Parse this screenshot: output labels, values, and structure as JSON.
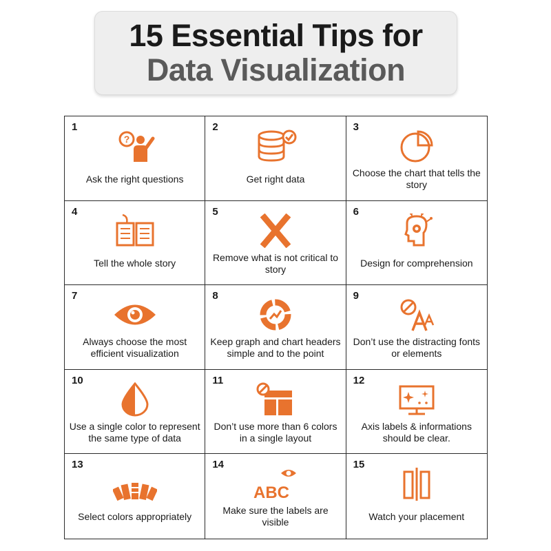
{
  "title": {
    "line1": "15 Essential Tips for",
    "line2": "Data Visualization"
  },
  "accent_color": "#e8732e",
  "tips": [
    {
      "number": "1",
      "label": "Ask the right questions",
      "icon": "question-person-icon"
    },
    {
      "number": "2",
      "label": "Get right data",
      "icon": "database-check-icon"
    },
    {
      "number": "3",
      "label": "Choose the chart that tells the story",
      "icon": "pie-chart-icon"
    },
    {
      "number": "4",
      "label": "Tell the whole story",
      "icon": "book-quill-icon"
    },
    {
      "number": "5",
      "label": "Remove what is not critical to story",
      "icon": "cross-icon"
    },
    {
      "number": "6",
      "label": "Design for comprehension",
      "icon": "brain-gear-icon"
    },
    {
      "number": "7",
      "label": "Always choose the most efficient visualization",
      "icon": "eye-icon"
    },
    {
      "number": "8",
      "label": "Keep graph and chart headers simple and to the point",
      "icon": "donut-trend-icon"
    },
    {
      "number": "9",
      "label": "Don’t use the distracting fonts or elements",
      "icon": "no-font-icon"
    },
    {
      "number": "10",
      "label": "Use a single color to represent the same type of data",
      "icon": "half-drop-icon"
    },
    {
      "number": "11",
      "label": "Don’t use more than 6 colors in a single layout",
      "icon": "no-layout-icon"
    },
    {
      "number": "12",
      "label": "Axis labels & informations should be clear.",
      "icon": "sparkle-monitor-icon"
    },
    {
      "number": "13",
      "label": "Select colors appropriately",
      "icon": "color-swatch-icon"
    },
    {
      "number": "14",
      "label": "Make sure the labels are visible",
      "icon": "abc-eye-icon"
    },
    {
      "number": "15",
      "label": "Watch your placement",
      "icon": "placement-bars-icon"
    }
  ]
}
